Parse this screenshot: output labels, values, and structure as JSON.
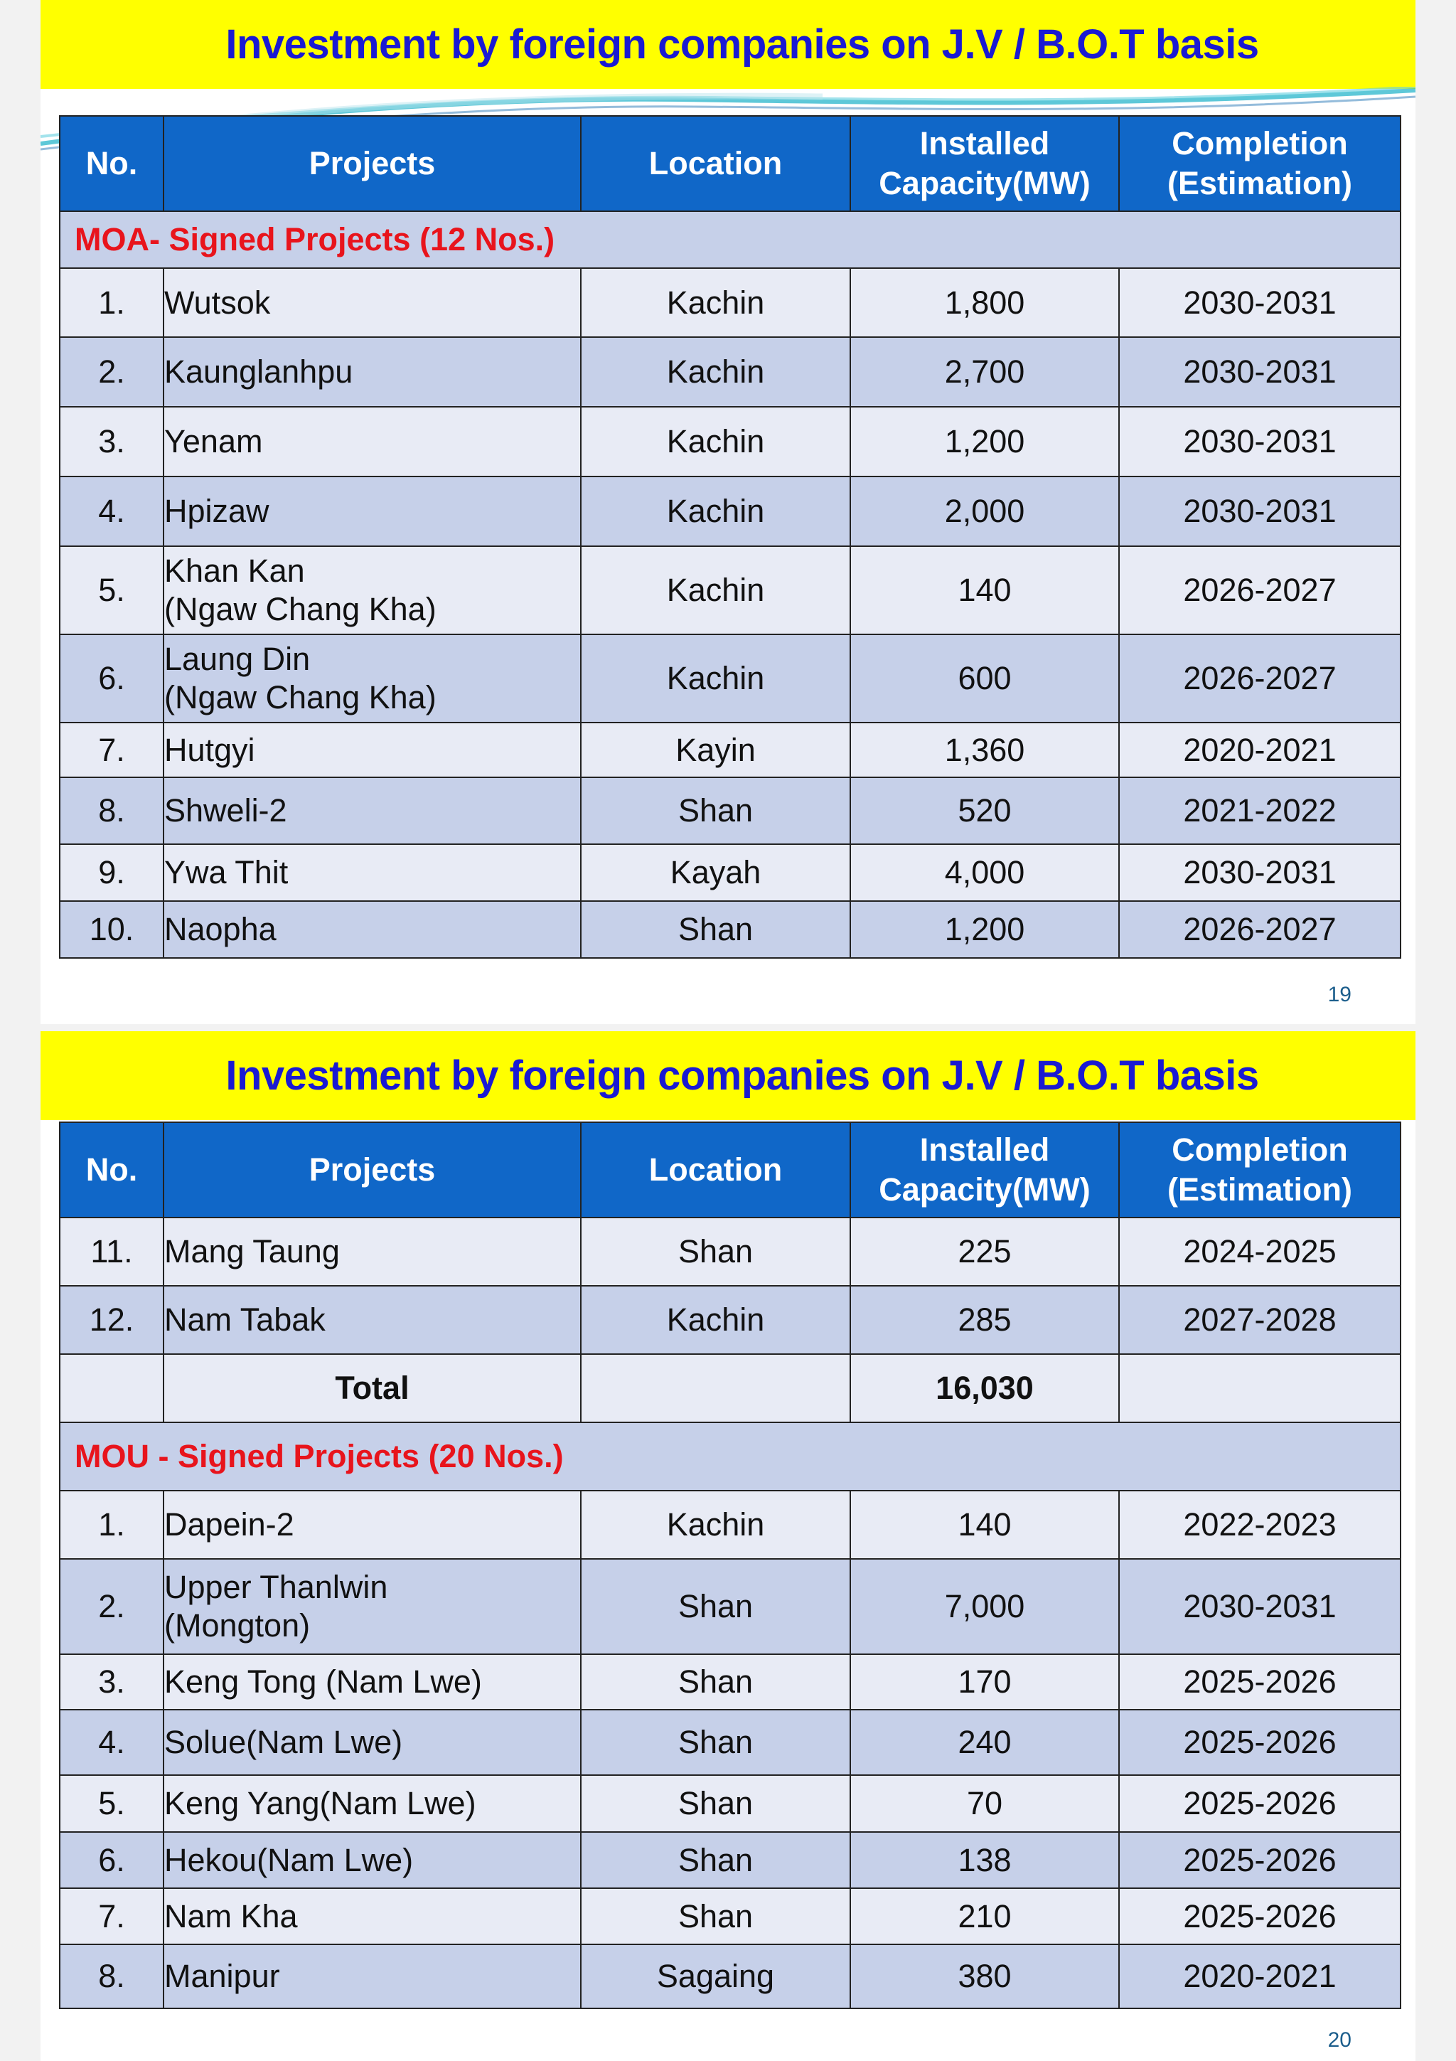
{
  "slide1": {
    "title": "Investment by foreign companies on J.V / B.O.T  basis",
    "headers": {
      "no": "No.",
      "projects": "Projects",
      "location": "Location",
      "capacity_line1": "Installed",
      "capacity_line2": "Capacity(MW)",
      "completion_line1": "Completion",
      "completion_line2": "(Estimation)"
    },
    "section_label": "MOA- Signed Projects  (12 Nos.)",
    "rows": [
      {
        "no": "1.",
        "project": "Wutsok",
        "project2": "",
        "location": "Kachin",
        "capacity": "1,800",
        "completion": "2030-2031"
      },
      {
        "no": "2.",
        "project": "Kaunglanhpu",
        "project2": "",
        "location": "Kachin",
        "capacity": "2,700",
        "completion": "2030-2031"
      },
      {
        "no": "3.",
        "project": "Yenam",
        "project2": "",
        "location": "Kachin",
        "capacity": "1,200",
        "completion": "2030-2031"
      },
      {
        "no": "4.",
        "project": "Hpizaw",
        "project2": "",
        "location": "Kachin",
        "capacity": "2,000",
        "completion": "2030-2031"
      },
      {
        "no": "5.",
        "project": "Khan Kan",
        "project2": "(Ngaw Chang Kha)",
        "location": "Kachin",
        "capacity": "140",
        "completion": "2026-2027"
      },
      {
        "no": "6.",
        "project": "Laung Din",
        "project2": "(Ngaw Chang Kha)",
        "location": "Kachin",
        "capacity": "600",
        "completion": "2026-2027"
      },
      {
        "no": "7.",
        "project": "Hutgyi",
        "project2": "",
        "location": "Kayin",
        "capacity": "1,360",
        "completion": "2020-2021"
      },
      {
        "no": "8.",
        "project": "Shweli-2",
        "project2": "",
        "location": "Shan",
        "capacity": "520",
        "completion": "2021-2022"
      },
      {
        "no": "9.",
        "project": "Ywa Thit",
        "project2": "",
        "location": "Kayah",
        "capacity": "4,000",
        "completion": "2030-2031"
      },
      {
        "no": "10.",
        "project": "Naopha",
        "project2": "",
        "location": "Shan",
        "capacity": "1,200",
        "completion": "2026-2027"
      }
    ],
    "page_number": "19"
  },
  "slide2": {
    "title": "Investment by foreign companies on J.V / B.O.T  basis",
    "headers": {
      "no": "No.",
      "projects": "Projects",
      "location": "Location",
      "capacity_line1": "Installed",
      "capacity_line2": "Capacity(MW)",
      "completion_line1": "Completion",
      "completion_line2": "(Estimation)"
    },
    "moa_rows": [
      {
        "no": "11.",
        "project": "Mang Taung",
        "project2": "",
        "location": "Shan",
        "capacity": "225",
        "completion": "2024-2025"
      },
      {
        "no": "12.",
        "project": "Nam Tabak",
        "project2": "",
        "location": "Kachin",
        "capacity": "285",
        "completion": "2027-2028"
      }
    ],
    "total_label": "Total",
    "total_value": "16,030",
    "section_label": "MOU - Signed Projects  (20 Nos.)",
    "mou_rows": [
      {
        "no": "1.",
        "project": "Dapein-2",
        "project2": "",
        "location": "Kachin",
        "capacity": "140",
        "completion": "2022-2023"
      },
      {
        "no": "2.",
        "project": "Upper Thanlwin",
        "project2": "(Mongton)",
        "location": "Shan",
        "capacity": "7,000",
        "completion": "2030-2031"
      },
      {
        "no": "3.",
        "project": "Keng Tong (Nam Lwe)",
        "project2": "",
        "location": "Shan",
        "capacity": "170",
        "completion": "2025-2026"
      },
      {
        "no": "4.",
        "project": "Solue(Nam Lwe)",
        "project2": "",
        "location": "Shan",
        "capacity": "240",
        "completion": "2025-2026"
      },
      {
        "no": "5.",
        "project": "Keng Yang(Nam Lwe)",
        "project2": "",
        "location": "Shan",
        "capacity": "70",
        "completion": "2025-2026"
      },
      {
        "no": "6.",
        "project": "Hekou(Nam Lwe)",
        "project2": "",
        "location": "Shan",
        "capacity": "138",
        "completion": "2025-2026"
      },
      {
        "no": "7.",
        "project": "Nam Kha",
        "project2": "",
        "location": "Shan",
        "capacity": "210",
        "completion": "2025-2026"
      },
      {
        "no": "8.",
        "project": "Manipur",
        "project2": "",
        "location": "Sagaing",
        "capacity": "380",
        "completion": "2020-2021"
      }
    ],
    "page_number": "20"
  },
  "colors": {
    "banner": "#ffff00",
    "title_text": "#1a1ad2",
    "header_bg": "#1067c8",
    "row_light": "#e8ebf5",
    "row_dark": "#c6d0e9",
    "accent_red": "#e8141c"
  }
}
